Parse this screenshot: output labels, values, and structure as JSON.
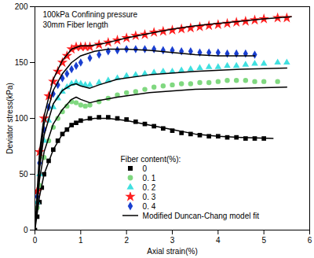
{
  "chart_data": {
    "type": "scatter",
    "xlabel": "Axial strain(%)",
    "ylabel": "Deviator stress(kPa)",
    "annotations": [
      "100kPa Confining pressure",
      "30mm Fiber length"
    ],
    "legend_title": "Fiber content(%):",
    "legend": "lower right",
    "xlim": [
      0,
      6
    ],
    "ylim": [
      0,
      200
    ],
    "xticks": [
      0,
      1,
      2,
      3,
      4,
      5,
      6
    ],
    "yticks": [
      0,
      50,
      100,
      150,
      200
    ],
    "grid": false,
    "series": [
      {
        "name": "0",
        "color": "#000000",
        "marker": "square",
        "x": [
          0,
          0.05,
          0.1,
          0.15,
          0.2,
          0.3,
          0.4,
          0.5,
          0.6,
          0.7,
          0.8,
          0.9,
          1.0,
          1.2,
          1.4,
          1.6,
          1.8,
          2.0,
          2.2,
          2.4,
          2.6,
          2.8,
          3.0,
          3.2,
          3.4,
          3.6,
          3.8,
          4.0,
          4.2,
          4.4,
          4.6,
          4.8,
          5.0
        ],
        "values": [
          0,
          12,
          25,
          38,
          50,
          62,
          72,
          80,
          86,
          90,
          94,
          96,
          98,
          100,
          101,
          101,
          100,
          99,
          97,
          95,
          93,
          91,
          89,
          87,
          86,
          85,
          84,
          84,
          83,
          83,
          82,
          82,
          82
        ]
      },
      {
        "name": "0. 1",
        "color": "#80d880",
        "marker": "circle",
        "x": [
          0.05,
          0.1,
          0.2,
          0.3,
          0.4,
          0.5,
          0.6,
          0.7,
          0.8,
          0.9,
          1.0,
          1.1,
          1.2,
          1.4,
          1.6,
          1.8,
          2.0,
          2.2,
          2.4,
          2.6,
          2.8,
          3.0,
          3.2,
          3.4,
          3.6,
          3.8,
          4.0,
          4.2,
          4.4,
          4.6,
          4.8,
          5.0,
          5.3
        ],
        "values": [
          20,
          40,
          65,
          80,
          92,
          100,
          106,
          111,
          115,
          114,
          112,
          111,
          112,
          115,
          118,
          121,
          123,
          124,
          126,
          128,
          129,
          130,
          131,
          131,
          132,
          132,
          133,
          134,
          134,
          134,
          133,
          133,
          133
        ]
      },
      {
        "name": "0. 2",
        "color": "#40e0e0",
        "marker": "triangle",
        "x": [
          0.05,
          0.1,
          0.2,
          0.3,
          0.4,
          0.5,
          0.6,
          0.7,
          0.8,
          0.9,
          1.0,
          1.1,
          1.2,
          1.4,
          1.6,
          1.8,
          2.0,
          2.2,
          2.4,
          2.6,
          2.8,
          3.0,
          3.2,
          3.4,
          3.6,
          3.8,
          4.0,
          4.2,
          4.4,
          4.6,
          4.8,
          5.0,
          5.3,
          5.5
        ],
        "values": [
          25,
          50,
          80,
          98,
          110,
          118,
          124,
          128,
          131,
          132,
          131,
          130,
          130,
          132,
          134,
          136,
          138,
          139,
          140,
          141,
          142,
          142,
          143,
          144,
          145,
          146,
          146,
          147,
          147,
          148,
          149,
          149,
          150,
          150
        ]
      },
      {
        "name": "0. 3",
        "color": "#ff2020",
        "marker": "star",
        "x": [
          0.05,
          0.1,
          0.2,
          0.3,
          0.4,
          0.5,
          0.6,
          0.7,
          0.8,
          0.9,
          1.0,
          1.1,
          1.2,
          1.4,
          1.6,
          1.8,
          2.0,
          2.2,
          2.4,
          2.6,
          2.8,
          3.0,
          3.2,
          3.4,
          3.6,
          3.8,
          4.0,
          4.2,
          4.4,
          4.6,
          4.8,
          5.0,
          5.3,
          5.5
        ],
        "values": [
          35,
          70,
          100,
          120,
          133,
          142,
          150,
          156,
          162,
          164,
          164,
          164,
          164,
          166,
          168,
          170,
          172,
          174,
          175,
          177,
          178,
          179,
          180,
          181,
          182,
          183,
          184,
          185,
          186,
          187,
          188,
          189,
          190,
          190
        ]
      },
      {
        "name": "0. 4",
        "color": "#1a3fd0",
        "marker": "diamond",
        "x": [
          0.05,
          0.1,
          0.2,
          0.3,
          0.4,
          0.5,
          0.6,
          0.7,
          0.8,
          0.9,
          1.0,
          1.2,
          1.4,
          1.6,
          1.8,
          2.0,
          2.2,
          2.4,
          2.6,
          2.8,
          3.0,
          3.2,
          3.4,
          3.6,
          3.8,
          4.0,
          4.2,
          4.4,
          4.6,
          4.8
        ],
        "values": [
          30,
          60,
          90,
          110,
          122,
          130,
          136,
          140,
          144,
          147,
          150,
          154,
          157,
          160,
          161,
          162,
          162,
          162,
          162,
          161,
          161,
          160,
          160,
          159,
          159,
          159,
          158,
          158,
          158,
          157
        ]
      },
      {
        "name": "Modified Duncan-Chang model fit",
        "type": "line",
        "color": "#000000",
        "line_style": "solid",
        "x": [
          0,
          0.1,
          0.2,
          0.4,
          0.6,
          0.8,
          1.0,
          1.3,
          1.6,
          2.0,
          2.5,
          3.0,
          3.5,
          4.0,
          4.5,
          5.2,
          null,
          0,
          0.1,
          0.2,
          0.4,
          0.6,
          0.8,
          0.9,
          1.0,
          1.2,
          1.4,
          1.8,
          2.5,
          3.5,
          4.5,
          5.5,
          null,
          0,
          0.1,
          0.2,
          0.4,
          0.6,
          0.8,
          0.9,
          1.0,
          1.2,
          1.4,
          1.8,
          2.5,
          3.5,
          4.5,
          5.5,
          null,
          0,
          0.1,
          0.2,
          0.4,
          0.6,
          0.8,
          1.0,
          1.2,
          1.5,
          2.0,
          2.5,
          3.0,
          3.5,
          4.0,
          4.5,
          5.0,
          5.6,
          null,
          0,
          0.1,
          0.2,
          0.4,
          0.6,
          0.8,
          1.0,
          1.3,
          1.6,
          2.0,
          2.5,
          3.0,
          3.5,
          4.0,
          4.5,
          4.8
        ],
        "values": [
          0,
          30,
          50,
          72,
          86,
          94,
          98,
          100,
          100,
          98,
          94,
          90,
          86,
          84,
          83,
          82,
          null,
          0,
          45,
          70,
          95,
          108,
          117,
          119,
          117,
          114,
          116,
          119,
          123,
          126,
          127,
          128,
          null,
          0,
          55,
          85,
          113,
          125,
          130,
          131,
          129,
          127,
          130,
          135,
          139,
          142,
          144,
          145,
          null,
          0,
          70,
          102,
          135,
          152,
          162,
          165,
          165,
          167,
          172,
          176,
          180,
          183,
          185,
          187,
          189,
          191,
          null,
          0,
          62,
          95,
          125,
          140,
          150,
          156,
          160,
          162,
          162,
          161,
          159,
          157,
          156,
          156,
          156
        ]
      }
    ]
  }
}
